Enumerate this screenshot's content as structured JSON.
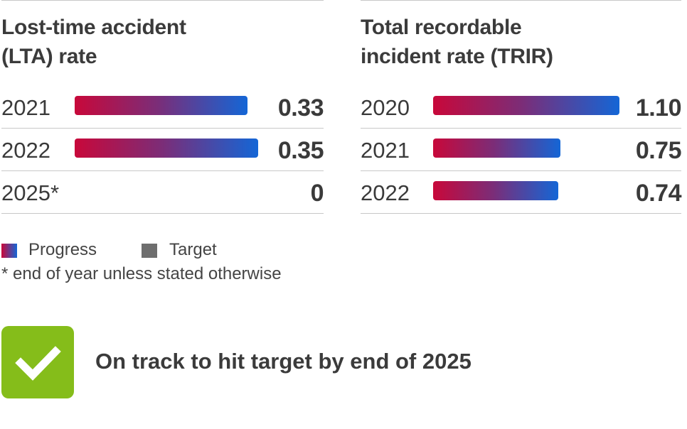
{
  "chart_data": [
    {
      "type": "bar",
      "title": "Lost-time accident (LTA) rate",
      "title_lines": [
        "Lost-time accident",
        "(LTA) rate"
      ],
      "categories": [
        "2021",
        "2022",
        "2025*"
      ],
      "values": [
        0.33,
        0.35,
        0
      ],
      "value_labels": [
        "0.33",
        "0.35",
        "0"
      ],
      "bar_kinds": [
        "progress",
        "progress",
        "target"
      ],
      "xlim": [
        0,
        0.35
      ],
      "orientation": "horizontal",
      "grid": false
    },
    {
      "type": "bar",
      "title": "Total recordable incident rate (TRIR)",
      "title_lines": [
        "Total recordable",
        "incident rate (TRIR)"
      ],
      "categories": [
        "2020",
        "2021",
        "2022"
      ],
      "values": [
        1.1,
        0.75,
        0.74
      ],
      "value_labels": [
        "1.10",
        "0.75",
        "0.74"
      ],
      "bar_kinds": [
        "progress",
        "progress",
        "progress"
      ],
      "xlim": [
        0,
        1.1
      ],
      "orientation": "horizontal",
      "grid": false
    }
  ],
  "legend": {
    "progress_label": "Progress",
    "target_label": "Target",
    "progress_colors": [
      "#c8083a",
      "#7b2d78",
      "#1466d6"
    ],
    "target_color": "#6e6e6e"
  },
  "footnote": "* end of year unless stated otherwise",
  "status": {
    "icon": "checkmark-icon",
    "color": "#85bd1a",
    "text": "On track to hit target by end of 2025"
  }
}
